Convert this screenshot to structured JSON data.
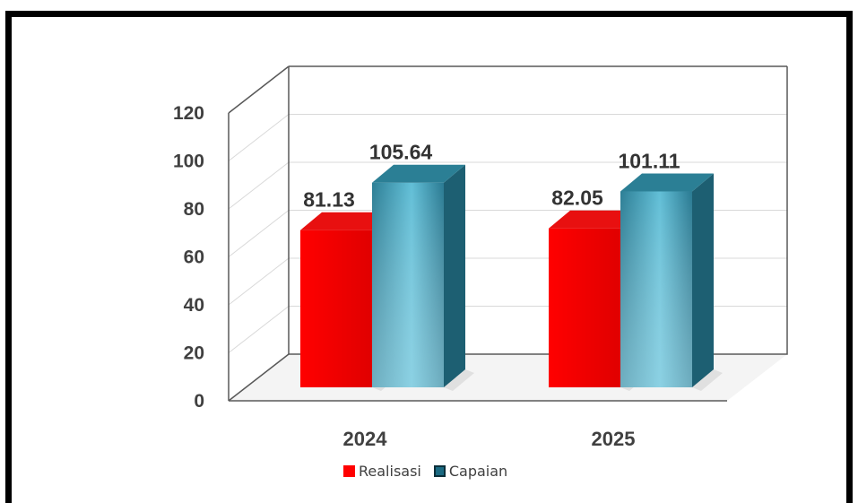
{
  "chart_data": {
    "type": "bar",
    "categories": [
      "2024",
      "2025"
    ],
    "series": [
      {
        "name": "Realisasi",
        "values": [
          81.13,
          82.05
        ],
        "color": "#ff0000"
      },
      {
        "name": "Capaian",
        "values": [
          105.64,
          101.11
        ],
        "color": "#2f8fa8"
      }
    ],
    "data_labels": [
      "81.13",
      "105.64",
      "82.05",
      "101.11"
    ],
    "ylim": [
      0,
      120
    ],
    "yticks": [
      "0",
      "20",
      "40",
      "60",
      "80",
      "100",
      "120"
    ],
    "grid": true,
    "legend_position": "bottom",
    "style": "3d-column"
  }
}
